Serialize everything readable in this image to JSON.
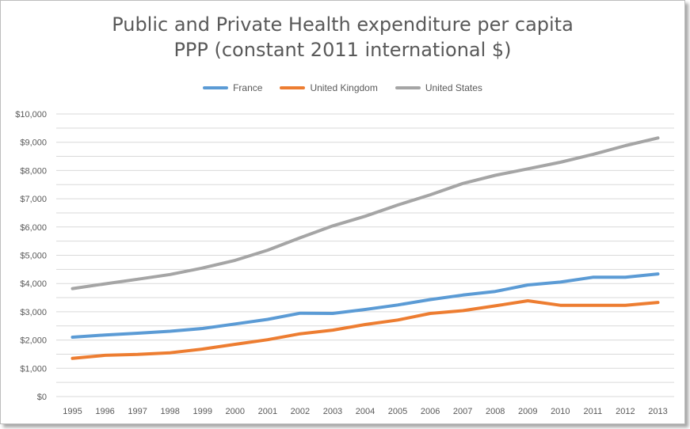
{
  "chart_data": {
    "type": "line",
    "title_line1": "Public and Private Health expenditure per capita",
    "title_line2": "PPP (constant 2011 international $)",
    "xlabel": "",
    "ylabel": "",
    "ylim": [
      0,
      10000
    ],
    "y_step": 500,
    "y_tick_labels": [
      "$0",
      "$1,000",
      "$2,000",
      "$3,000",
      "$4,000",
      "$5,000",
      "$6,000",
      "$7,000",
      "$8,000",
      "$9,000",
      "$10,000"
    ],
    "categories": [
      "1995",
      "1996",
      "1997",
      "1998",
      "1999",
      "2000",
      "2001",
      "2002",
      "2003",
      "2004",
      "2005",
      "2006",
      "2007",
      "2008",
      "2009",
      "2010",
      "2011",
      "2012",
      "2013"
    ],
    "legend_position": "top-center",
    "series": [
      {
        "name": "France",
        "color": "#5b9bd5",
        "values": [
          2100,
          2180,
          2240,
          2310,
          2410,
          2570,
          2730,
          2950,
          2940,
          3080,
          3240,
          3430,
          3590,
          3720,
          3950,
          4050,
          4220,
          4220,
          4340
        ]
      },
      {
        "name": "United Kingdom",
        "color": "#ed7d31",
        "values": [
          1350,
          1460,
          1490,
          1550,
          1680,
          1850,
          2010,
          2220,
          2350,
          2550,
          2710,
          2940,
          3040,
          3210,
          3390,
          3230,
          3230,
          3230,
          3330
        ]
      },
      {
        "name": "United States",
        "color": "#a5a5a5",
        "values": [
          3820,
          3990,
          4150,
          4320,
          4550,
          4820,
          5180,
          5620,
          6040,
          6380,
          6780,
          7140,
          7540,
          7830,
          8060,
          8290,
          8570,
          8880,
          9150
        ]
      }
    ]
  }
}
